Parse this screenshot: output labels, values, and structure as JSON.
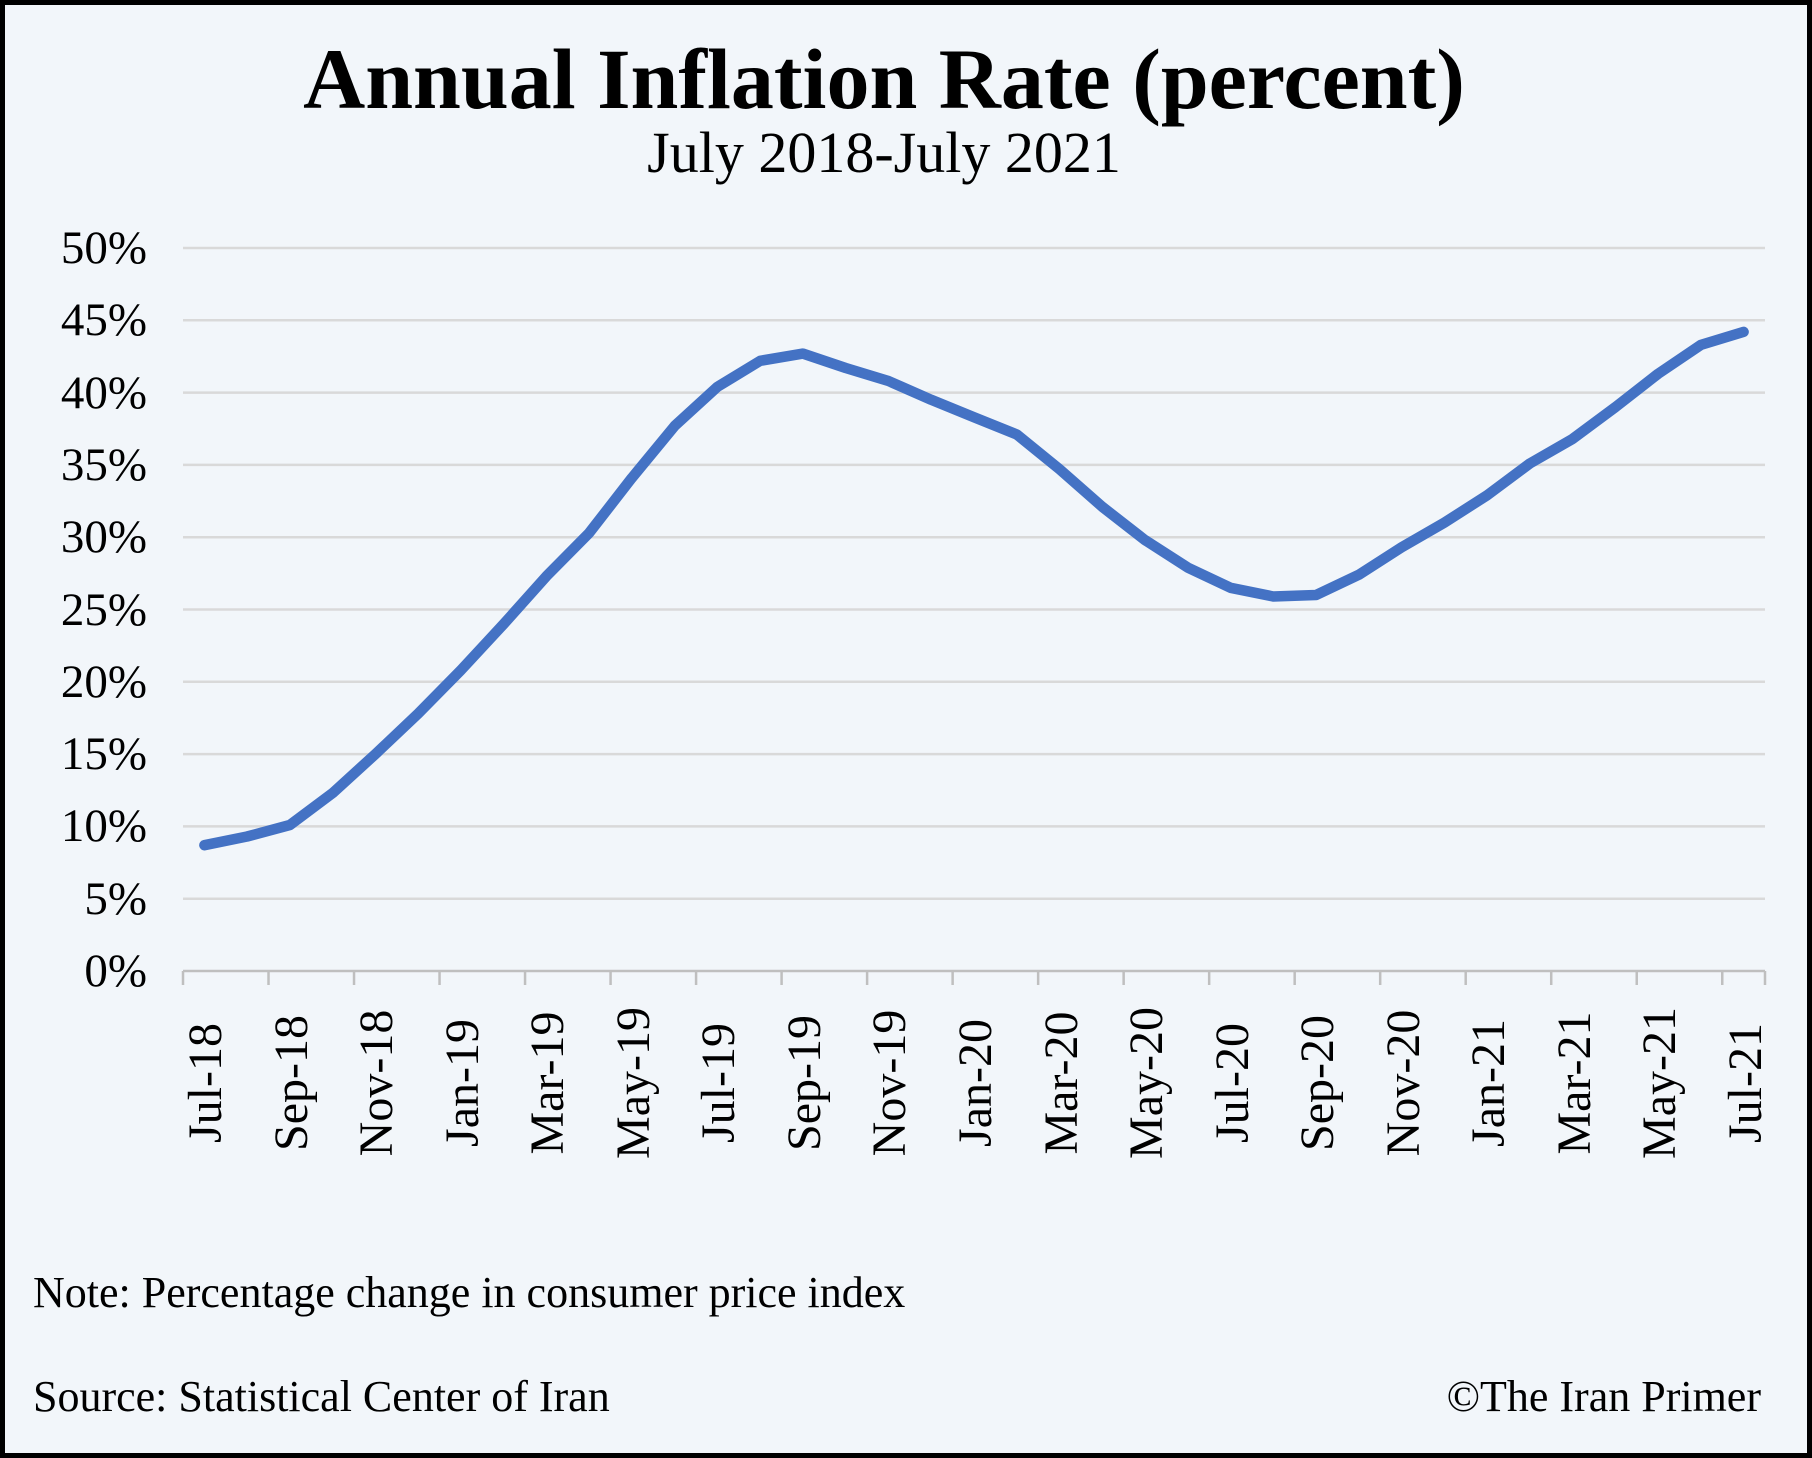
{
  "header": {
    "title": "Annual Inflation Rate (percent)",
    "subtitle": "July 2018-July 2021"
  },
  "footer": {
    "note": "Note: Percentage change in consumer price index",
    "source": "Source: Statistical Center of Iran",
    "copyright": "©The Iran Primer"
  },
  "colors": {
    "line": "#4472c4",
    "gridline": "#d9d9d9",
    "axis": "#bfbfbf",
    "background": "#f2f6fa",
    "frame_border": "#000000",
    "text": "#000000"
  },
  "chart_data": {
    "type": "line",
    "title": "Annual Inflation Rate (percent)",
    "subtitle": "July 2018-July 2021",
    "series_name": "Annual inflation rate (percent)",
    "x": [
      "Jul-18",
      "Aug-18",
      "Sep-18",
      "Oct-18",
      "Nov-18",
      "Dec-18",
      "Jan-19",
      "Feb-19",
      "Mar-19",
      "Apr-19",
      "May-19",
      "Jun-19",
      "Jul-19",
      "Aug-19",
      "Sep-19",
      "Oct-19",
      "Nov-19",
      "Dec-19",
      "Jan-20",
      "Feb-20",
      "Mar-20",
      "Apr-20",
      "May-20",
      "Jun-20",
      "Jul-20",
      "Aug-20",
      "Sep-20",
      "Oct-20",
      "Nov-20",
      "Dec-20",
      "Jan-21",
      "Feb-21",
      "Mar-21",
      "Apr-21",
      "May-21",
      "Jun-21",
      "Jul-21"
    ],
    "values": [
      8.7,
      9.3,
      10.1,
      12.3,
      15.0,
      17.8,
      20.8,
      24.0,
      27.3,
      30.3,
      34.1,
      37.7,
      40.4,
      42.2,
      42.7,
      41.7,
      40.8,
      39.5,
      38.3,
      37.1,
      34.7,
      32.1,
      29.8,
      27.9,
      26.5,
      25.9,
      26.0,
      27.4,
      29.3,
      31.0,
      32.9,
      35.1,
      36.8,
      39.0,
      41.3,
      43.3,
      44.2
    ],
    "ylim": [
      0,
      50
    ],
    "ytick_step": 5,
    "ytick_labels": [
      "0%",
      "5%",
      "10%",
      "15%",
      "20%",
      "25%",
      "30%",
      "35%",
      "40%",
      "45%",
      "50%"
    ],
    "xtick_label_interval": 2,
    "xtick_labels_shown": [
      "Jul-18",
      "Sep-18",
      "Nov-18",
      "Jan-19",
      "Mar-19",
      "May-19",
      "Jul-19",
      "Sep-19",
      "Nov-19",
      "Jan-20",
      "Mar-20",
      "May-20",
      "Jul-20",
      "Sep-20",
      "Nov-20",
      "Jan-21",
      "Mar-21",
      "May-21",
      "Jul-21"
    ],
    "grid": "horizontal",
    "legend": "none"
  }
}
